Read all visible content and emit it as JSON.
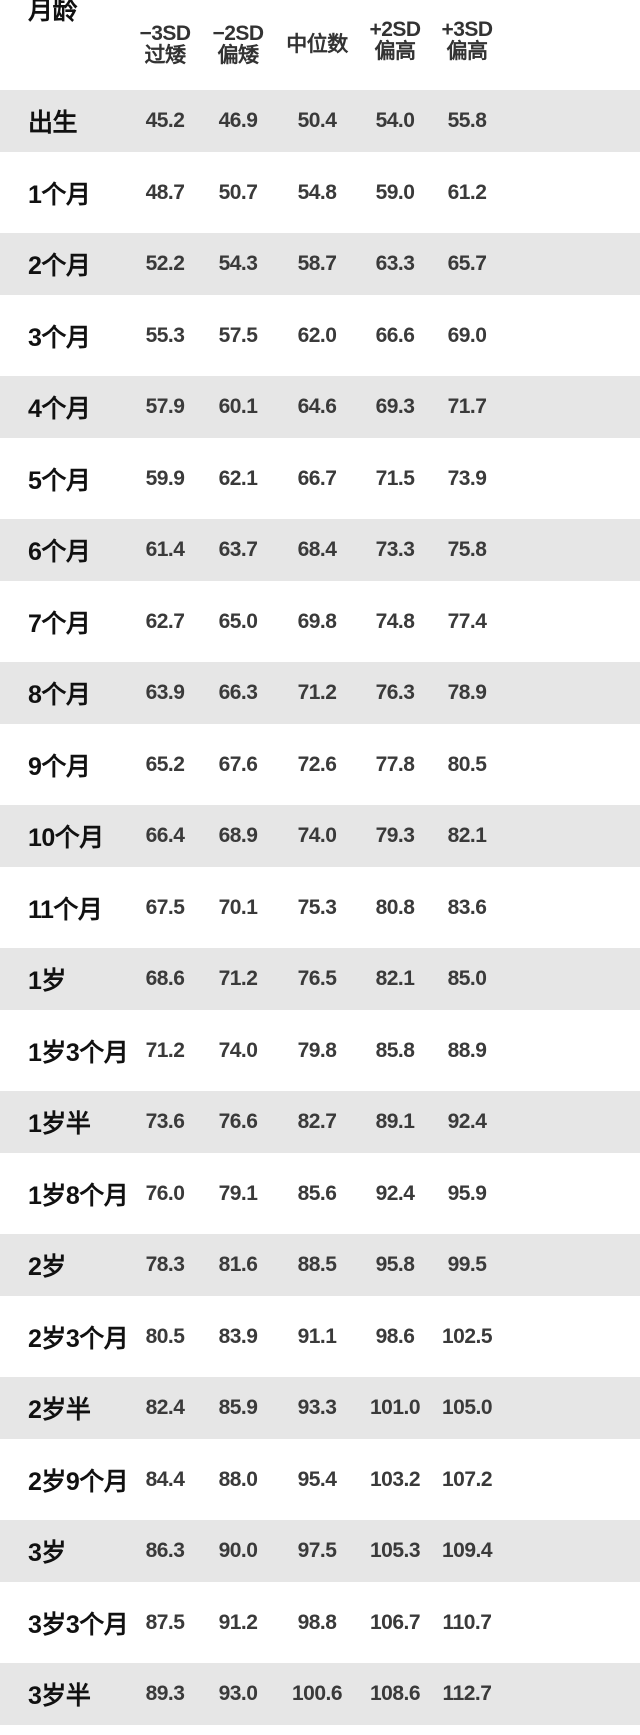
{
  "header": {
    "age": "月龄",
    "columns": [
      {
        "line1": "−3SD",
        "line2": "过矮"
      },
      {
        "line1": "−2SD",
        "line2": "偏矮"
      },
      {
        "line1": "",
        "line2": "中位数"
      },
      {
        "line1": "+2SD",
        "line2": "偏高"
      },
      {
        "line1": "+3SD",
        "line2": "偏高"
      }
    ]
  },
  "rows": [
    {
      "age": "出生",
      "values": [
        "45.2",
        "46.9",
        "50.4",
        "54.0",
        "55.8"
      ]
    },
    {
      "age": "1个月",
      "values": [
        "48.7",
        "50.7",
        "54.8",
        "59.0",
        "61.2"
      ]
    },
    {
      "age": "2个月",
      "values": [
        "52.2",
        "54.3",
        "58.7",
        "63.3",
        "65.7"
      ]
    },
    {
      "age": "3个月",
      "values": [
        "55.3",
        "57.5",
        "62.0",
        "66.6",
        "69.0"
      ]
    },
    {
      "age": "4个月",
      "values": [
        "57.9",
        "60.1",
        "64.6",
        "69.3",
        "71.7"
      ]
    },
    {
      "age": "5个月",
      "values": [
        "59.9",
        "62.1",
        "66.7",
        "71.5",
        "73.9"
      ]
    },
    {
      "age": "6个月",
      "values": [
        "61.4",
        "63.7",
        "68.4",
        "73.3",
        "75.8"
      ]
    },
    {
      "age": "7个月",
      "values": [
        "62.7",
        "65.0",
        "69.8",
        "74.8",
        "77.4"
      ]
    },
    {
      "age": "8个月",
      "values": [
        "63.9",
        "66.3",
        "71.2",
        "76.3",
        "78.9"
      ]
    },
    {
      "age": "9个月",
      "values": [
        "65.2",
        "67.6",
        "72.6",
        "77.8",
        "80.5"
      ]
    },
    {
      "age": "10个月",
      "values": [
        "66.4",
        "68.9",
        "74.0",
        "79.3",
        "82.1"
      ]
    },
    {
      "age": "11个月",
      "values": [
        "67.5",
        "70.1",
        "75.3",
        "80.8",
        "83.6"
      ]
    },
    {
      "age": "1岁",
      "values": [
        "68.6",
        "71.2",
        "76.5",
        "82.1",
        "85.0"
      ]
    },
    {
      "age": "1岁3个月",
      "values": [
        "71.2",
        "74.0",
        "79.8",
        "85.8",
        "88.9"
      ]
    },
    {
      "age": "1岁半",
      "values": [
        "73.6",
        "76.6",
        "82.7",
        "89.1",
        "92.4"
      ]
    },
    {
      "age": "1岁8个月",
      "values": [
        "76.0",
        "79.1",
        "85.6",
        "92.4",
        "95.9"
      ]
    },
    {
      "age": "2岁",
      "values": [
        "78.3",
        "81.6",
        "88.5",
        "95.8",
        "99.5"
      ]
    },
    {
      "age": "2岁3个月",
      "values": [
        "80.5",
        "83.9",
        "91.1",
        "98.6",
        "102.5"
      ]
    },
    {
      "age": "2岁半",
      "values": [
        "82.4",
        "85.9",
        "93.3",
        "101.0",
        "105.0"
      ]
    },
    {
      "age": "2岁9个月",
      "values": [
        "84.4",
        "88.0",
        "95.4",
        "103.2",
        "107.2"
      ]
    },
    {
      "age": "3岁",
      "values": [
        "86.3",
        "90.0",
        "97.5",
        "105.3",
        "109.4"
      ]
    },
    {
      "age": "3岁3个月",
      "values": [
        "87.5",
        "91.2",
        "98.8",
        "106.7",
        "110.7"
      ]
    },
    {
      "age": "3岁半",
      "values": [
        "89.3",
        "93.0",
        "100.6",
        "108.6",
        "112.7"
      ]
    }
  ],
  "colors": {
    "shade": "#e6e6e6",
    "label_text": "#111111",
    "value_text": "#3a3a3a"
  }
}
